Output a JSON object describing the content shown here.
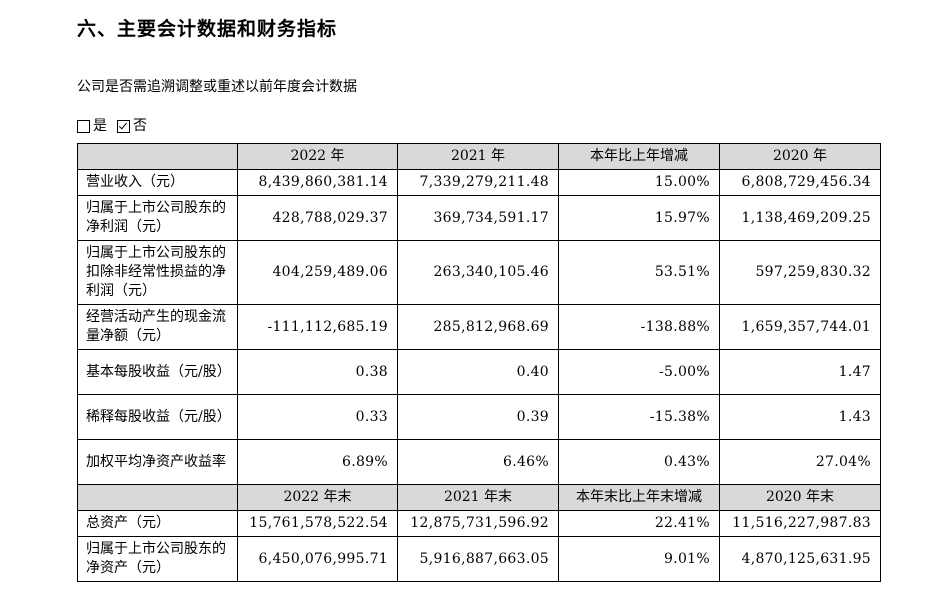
{
  "section_title": "六、主要会计数据和财务指标",
  "question": "公司是否需追溯调整或重述以前年度会计数据",
  "options": {
    "yes_label": "是",
    "yes_checked": false,
    "no_label": "否",
    "no_checked": true
  },
  "table": {
    "header1": [
      "",
      "2022 年",
      "2021 年",
      "本年比上年增减",
      "2020 年"
    ],
    "rows1": [
      {
        "label": "营业收入（元）",
        "values": [
          "8,439,860,381.14",
          "7,339,279,211.48",
          "15.00%",
          "6,808,729,456.34"
        ]
      },
      {
        "label": "归属于上市公司股东的净利润（元）",
        "values": [
          "428,788,029.37",
          "369,734,591.17",
          "15.97%",
          "1,138,469,209.25"
        ]
      },
      {
        "label": "归属于上市公司股东的扣除非经常性损益的净利润（元）",
        "values": [
          "404,259,489.06",
          "263,340,105.46",
          "53.51%",
          "597,259,830.32"
        ]
      },
      {
        "label": "经营活动产生的现金流量净额（元）",
        "values": [
          "-111,112,685.19",
          "285,812,968.69",
          "-138.88%",
          "1,659,357,744.01"
        ]
      },
      {
        "label": "基本每股收益（元/股）",
        "values": [
          "0.38",
          "0.40",
          "-5.00%",
          "1.47"
        ]
      },
      {
        "label": "稀释每股收益（元/股）",
        "values": [
          "0.33",
          "0.39",
          "-15.38%",
          "1.43"
        ]
      },
      {
        "label": "加权平均净资产收益率",
        "values": [
          "6.89%",
          "6.46%",
          "0.43%",
          "27.04%"
        ]
      }
    ],
    "header2": [
      "",
      "2022 年末",
      "2021 年末",
      "本年末比上年末增减",
      "2020 年末"
    ],
    "rows2": [
      {
        "label": "总资产（元）",
        "values": [
          "15,761,578,522.54",
          "12,875,731,596.92",
          "22.41%",
          "11,516,227,987.83"
        ]
      },
      {
        "label": "归属于上市公司股东的净资产（元）",
        "values": [
          "6,450,076,995.71",
          "5,916,887,663.05",
          "9.01%",
          "4,870,125,631.95"
        ]
      }
    ]
  }
}
